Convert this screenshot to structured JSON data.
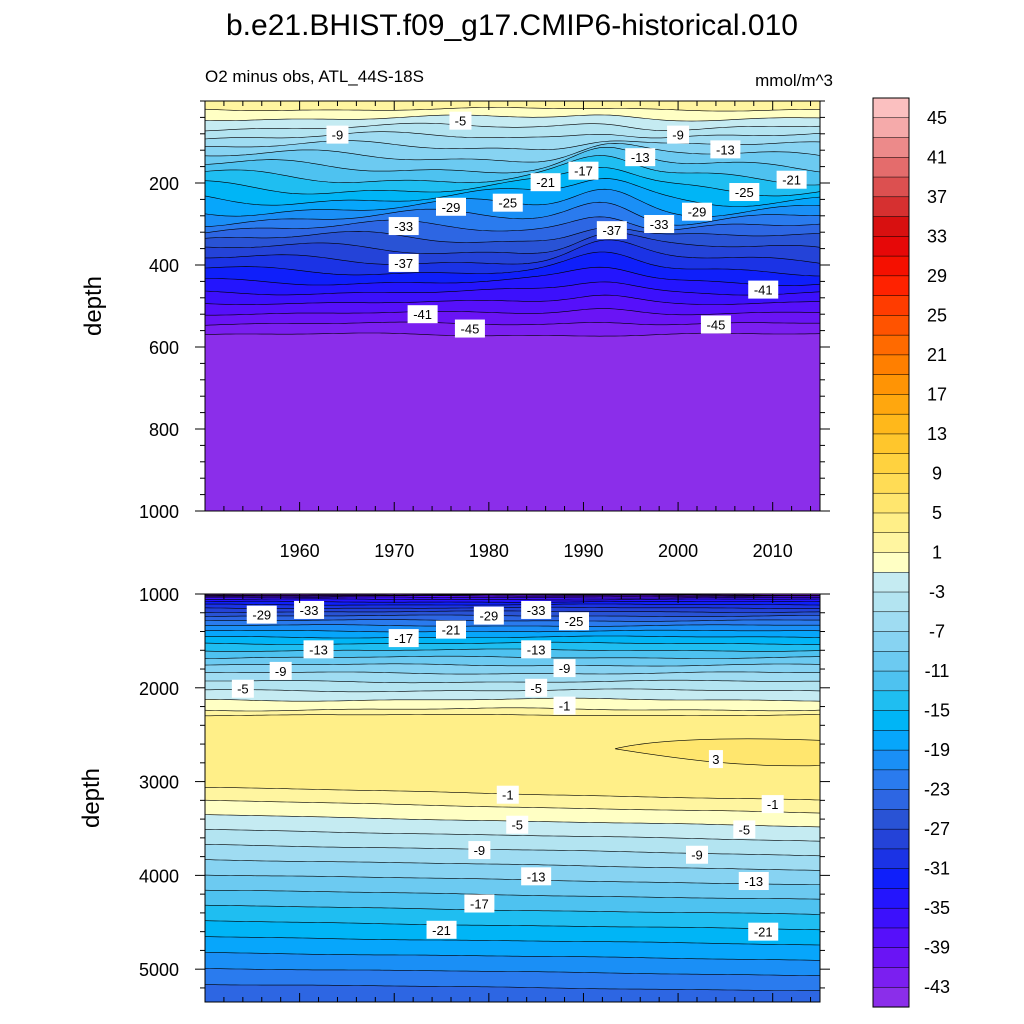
{
  "title": "b.e21.BHIST.f09_g17.CMIP6-historical.010",
  "subtitle_left": "O2 minus obs, ATL_44S-18S",
  "subtitle_right": "mmol/m^3",
  "colors": {
    "levels": [
      -45,
      -43,
      -41,
      -39,
      -37,
      -35,
      -33,
      -31,
      -29,
      -27,
      -25,
      -23,
      -21,
      -19,
      -17,
      -15,
      -13,
      -11,
      -9,
      -7,
      -5,
      -3,
      -1,
      1,
      3,
      5,
      7,
      9,
      11,
      13,
      15,
      17,
      19,
      21,
      23,
      25,
      27,
      29,
      31,
      33,
      35,
      37,
      39,
      41,
      43,
      45
    ],
    "fills": [
      "#8b2eea",
      "#7b1ff0",
      "#6a14f5",
      "#5610fa",
      "#3c10fc",
      "#2415fd",
      "#0f1ffa",
      "#1b33e5",
      "#2443d8",
      "#2953d5",
      "#2d66e3",
      "#2a7bee",
      "#1a8ff6",
      "#07a6fb",
      "#00b5f6",
      "#1fbef1",
      "#4ec2f0",
      "#6ccaf1",
      "#87d3f2",
      "#9fdcf2",
      "#b3e4f1",
      "#c5ebf2",
      "#ffffc4",
      "#fff5a0",
      "#ffef88",
      "#ffe66e",
      "#ffdc55",
      "#ffd23f",
      "#ffc62c",
      "#ffb81b",
      "#ffa70e",
      "#ff9405",
      "#ff7f00",
      "#ff6a00",
      "#ff5300",
      "#ff3c00",
      "#ff2200",
      "#f51000",
      "#e60808",
      "#d81010",
      "#d63030",
      "#dc5050",
      "#e46c6c",
      "#ec8a8a",
      "#f5aaaa",
      "#fbc0c0"
    ]
  },
  "chart_data": [
    {
      "type": "contour",
      "panel": "upper",
      "xlabel": "",
      "ylabel": "depth",
      "xlim": [
        1950,
        2015
      ],
      "ylim": [
        1000,
        0
      ],
      "x_ticks": [
        1960,
        1970,
        1980,
        1990,
        2000,
        2010
      ],
      "x_tick_labels": [
        "1960",
        "1970",
        "1980",
        "1990",
        "2000",
        "2010"
      ],
      "y_ticks": [
        200,
        400,
        600,
        800,
        1000
      ],
      "y_tick_labels": [
        "200",
        "400",
        "600",
        "800",
        "1000"
      ],
      "approx_contour_depths": [
        {
          "value": -5,
          "depth": 45
        },
        {
          "value": -9,
          "depth": 85
        },
        {
          "value": -13,
          "depth": 130
        },
        {
          "value": -17,
          "depth": 170
        },
        {
          "value": -21,
          "depth": 205
        },
        {
          "value": -25,
          "depth": 235
        },
        {
          "value": -29,
          "depth": 265
        },
        {
          "value": -33,
          "depth": 300
        },
        {
          "value": -37,
          "depth": 370
        },
        {
          "value": -41,
          "depth": 480
        },
        {
          "value": -45,
          "depth": 570
        }
      ],
      "contour_labels": [
        {
          "text": "-5",
          "x": 1977,
          "depth": 48
        },
        {
          "text": "-9",
          "x": 1964,
          "depth": 82
        },
        {
          "text": "-9",
          "x": 2000,
          "depth": 82
        },
        {
          "text": "-13",
          "x": 1996,
          "depth": 137
        },
        {
          "text": "-13",
          "x": 2005,
          "depth": 118
        },
        {
          "text": "-17",
          "x": 1990,
          "depth": 170
        },
        {
          "text": "-21",
          "x": 1986,
          "depth": 198
        },
        {
          "text": "-21",
          "x": 2012,
          "depth": 192
        },
        {
          "text": "-25",
          "x": 1982,
          "depth": 248
        },
        {
          "text": "-25",
          "x": 2007,
          "depth": 222
        },
        {
          "text": "-29",
          "x": 1976,
          "depth": 258
        },
        {
          "text": "-29",
          "x": 2002,
          "depth": 270
        },
        {
          "text": "-33",
          "x": 1971,
          "depth": 305
        },
        {
          "text": "-33",
          "x": 1998,
          "depth": 300
        },
        {
          "text": "-37",
          "x": 1971,
          "depth": 395
        },
        {
          "text": "-37",
          "x": 1993,
          "depth": 315
        },
        {
          "text": "-41",
          "x": 1973,
          "depth": 520
        },
        {
          "text": "-41",
          "x": 2009,
          "depth": 460
        },
        {
          "text": "-45",
          "x": 1978,
          "depth": 555
        },
        {
          "text": "-45",
          "x": 2004,
          "depth": 545
        }
      ]
    },
    {
      "type": "contour",
      "panel": "lower",
      "xlabel": "",
      "ylabel": "depth",
      "xlim": [
        1950,
        2015
      ],
      "ylim": [
        5350,
        1000
      ],
      "y_ticks": [
        1000,
        2000,
        3000,
        4000,
        5000
      ],
      "y_tick_labels": [
        "1000",
        "2000",
        "3000",
        "4000",
        "5000"
      ],
      "approx_contour_depths": [
        {
          "value": -33,
          "depth": 1100
        },
        {
          "value": -29,
          "depth": 1200
        },
        {
          "value": -25,
          "depth": 1300
        },
        {
          "value": -21,
          "depth": 1420
        },
        {
          "value": -17,
          "depth": 1520
        },
        {
          "value": -13,
          "depth": 1640
        },
        {
          "value": -9,
          "depth": 1800
        },
        {
          "value": -5,
          "depth": 1990
        },
        {
          "value": -1,
          "depth": 2220
        },
        {
          "value": 1,
          "depth": 2300
        },
        {
          "value": 3,
          "depth": 2650
        },
        {
          "value": -1,
          "depth": 3100
        },
        {
          "value": -5,
          "depth": 3450
        },
        {
          "value": -9,
          "depth": 3750
        },
        {
          "value": -13,
          "depth": 4050
        },
        {
          "value": -17,
          "depth": 4350
        },
        {
          "value": -21,
          "depth": 4650
        },
        {
          "value": -25,
          "depth": 4950
        }
      ],
      "contour_labels": [
        {
          "text": "-29",
          "x": 1956,
          "depth": 1220
        },
        {
          "text": "-33",
          "x": 1961,
          "depth": 1170
        },
        {
          "text": "-21",
          "x": 1976,
          "depth": 1380
        },
        {
          "text": "-29",
          "x": 1980,
          "depth": 1230
        },
        {
          "text": "-33",
          "x": 1985,
          "depth": 1170
        },
        {
          "text": "-25",
          "x": 1989,
          "depth": 1290
        },
        {
          "text": "-17",
          "x": 1971,
          "depth": 1470
        },
        {
          "text": "-13",
          "x": 1962,
          "depth": 1590
        },
        {
          "text": "-13",
          "x": 1985,
          "depth": 1590
        },
        {
          "text": "-9",
          "x": 1958,
          "depth": 1820
        },
        {
          "text": "-9",
          "x": 1988,
          "depth": 1790
        },
        {
          "text": "-5",
          "x": 1954,
          "depth": 2010
        },
        {
          "text": "-5",
          "x": 1985,
          "depth": 2000
        },
        {
          "text": "-1",
          "x": 1988,
          "depth": 2190
        },
        {
          "text": "3",
          "x": 2004,
          "depth": 2760
        },
        {
          "text": "-1",
          "x": 1982,
          "depth": 3140
        },
        {
          "text": "-1",
          "x": 2010,
          "depth": 3240
        },
        {
          "text": "-5",
          "x": 1983,
          "depth": 3460
        },
        {
          "text": "-5",
          "x": 2007,
          "depth": 3510
        },
        {
          "text": "-9",
          "x": 1979,
          "depth": 3730
        },
        {
          "text": "-9",
          "x": 2002,
          "depth": 3780
        },
        {
          "text": "-13",
          "x": 1985,
          "depth": 4010
        },
        {
          "text": "-13",
          "x": 2008,
          "depth": 4060
        },
        {
          "text": "-17",
          "x": 1979,
          "depth": 4300
        },
        {
          "text": "-21",
          "x": 1975,
          "depth": 4580
        },
        {
          "text": "-21",
          "x": 2009,
          "depth": 4600
        }
      ]
    }
  ],
  "colorbar": {
    "tick_labels": [
      "45",
      "41",
      "37",
      "33",
      "29",
      "25",
      "21",
      "17",
      "13",
      "9",
      "5",
      "1",
      "-3",
      "-7",
      "-11",
      "-15",
      "-19",
      "-23",
      "-27",
      "-31",
      "-35",
      "-39",
      "-43"
    ]
  }
}
